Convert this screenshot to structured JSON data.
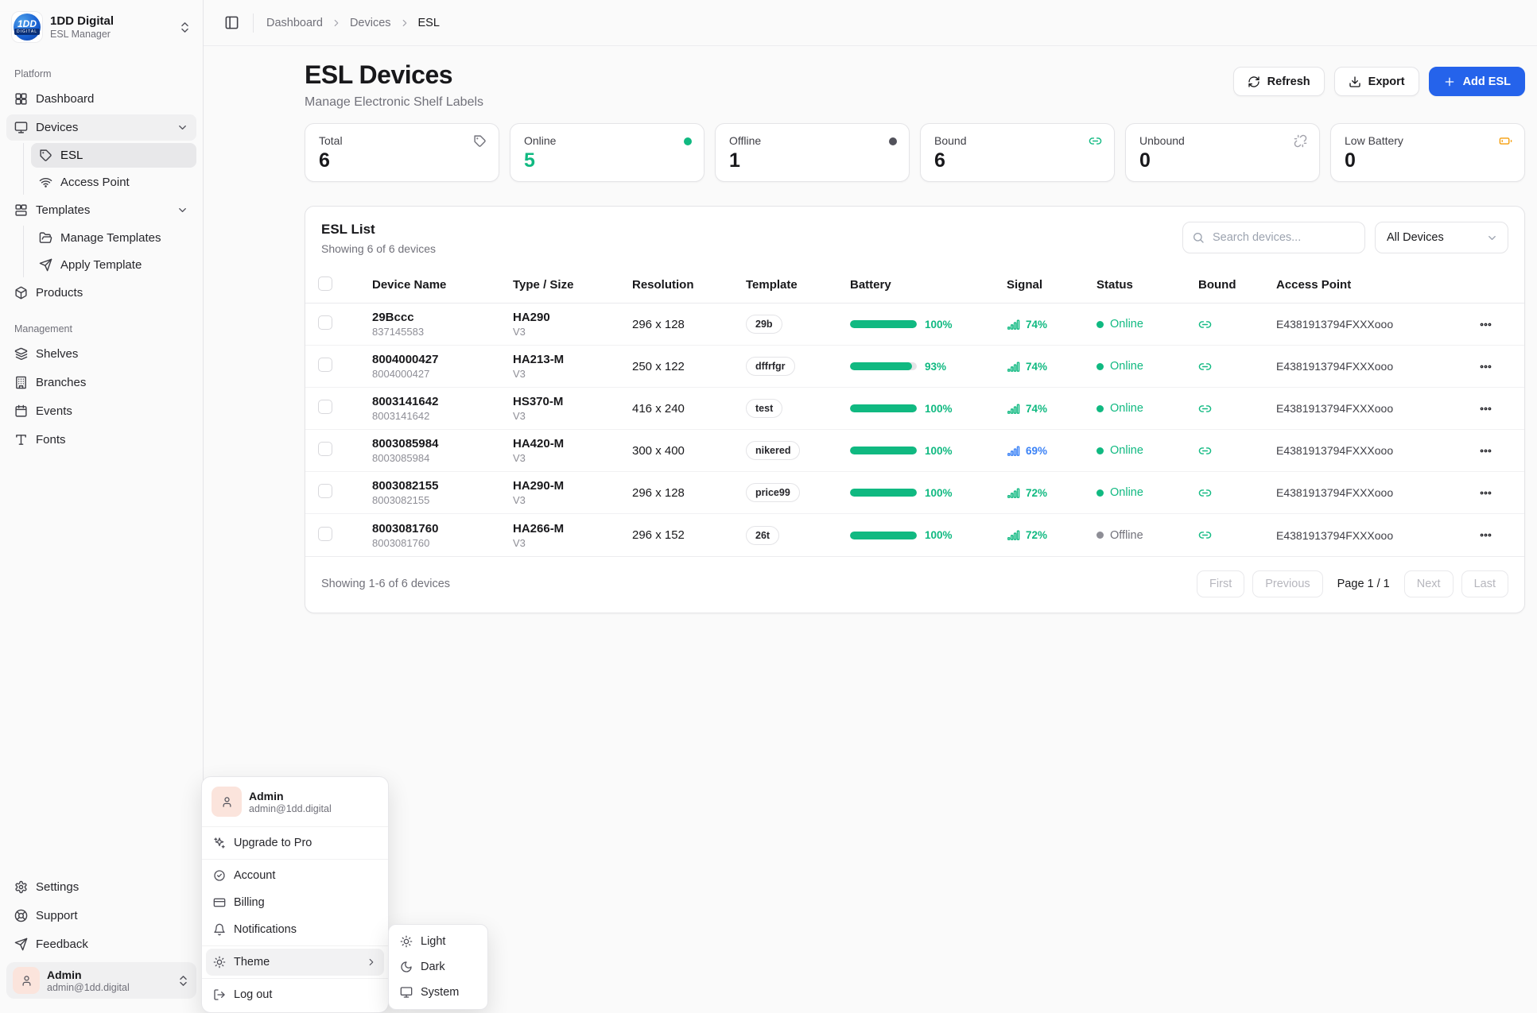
{
  "brand": {
    "logo_line1": "1DD",
    "logo_line2": "DIGITAL",
    "name": "1DD Digital",
    "subtitle": "ESL Manager"
  },
  "breadcrumb": {
    "items": [
      "Dashboard",
      "Devices",
      "ESL"
    ]
  },
  "sidebar": {
    "platform_label": "Platform",
    "dashboard": "Dashboard",
    "devices": "Devices",
    "esl": "ESL",
    "access_point": "Access Point",
    "templates": "Templates",
    "manage_templates": "Manage Templates",
    "apply_template": "Apply Template",
    "products": "Products",
    "management_label": "Management",
    "shelves": "Shelves",
    "branches": "Branches",
    "events": "Events",
    "fonts": "Fonts",
    "settings": "Settings",
    "support": "Support",
    "feedback": "Feedback",
    "user": {
      "name": "Admin",
      "email": "admin@1dd.digital"
    }
  },
  "page": {
    "title": "ESL Devices",
    "subtitle": "Manage Electronic Shelf Labels"
  },
  "toolbar": {
    "refresh_label": "Refresh",
    "export_label": "Export",
    "add_label": "Add ESL"
  },
  "stats": [
    {
      "label": "Total",
      "value": "6",
      "icon": "tag-icon"
    },
    {
      "label": "Online",
      "value": "5",
      "icon": "green-dot",
      "value_color": "#10b981"
    },
    {
      "label": "Offline",
      "value": "1",
      "icon": "gray-dot"
    },
    {
      "label": "Bound",
      "value": "6",
      "icon": "link-icon"
    },
    {
      "label": "Unbound",
      "value": "0",
      "icon": "unlink-icon"
    },
    {
      "label": "Low Battery",
      "value": "0",
      "icon": "battery-icon"
    }
  ],
  "list": {
    "title": "ESL List",
    "subtitle": "Showing 6 of 6 devices",
    "search_placeholder": "Search devices...",
    "filter_value": "All Devices",
    "columns": [
      "Device Name",
      "Type / Size",
      "Resolution",
      "Template",
      "Battery",
      "Signal",
      "Status",
      "Bound",
      "Access Point"
    ],
    "rows": [
      {
        "name": "29Bccc",
        "id": "837145583",
        "type": "HA290",
        "ver": "V3",
        "resolution": "296 x 128",
        "template": "29b",
        "battery": "100%",
        "battery_pct": 100,
        "signal": "74%",
        "signal_color": "#10b981",
        "status": "Online",
        "access_point": "E4381913794FXXXooo"
      },
      {
        "name": "8004000427",
        "id": "8004000427",
        "type": "HA213-M",
        "ver": "V3",
        "resolution": "250 x 122",
        "template": "dffrfgr",
        "battery": "93%",
        "battery_pct": 93,
        "signal": "74%",
        "signal_color": "#10b981",
        "status": "Online",
        "access_point": "E4381913794FXXXooo"
      },
      {
        "name": "8003141642",
        "id": "8003141642",
        "type": "HS370-M",
        "ver": "V3",
        "resolution": "416 x 240",
        "template": "test",
        "battery": "100%",
        "battery_pct": 100,
        "signal": "74%",
        "signal_color": "#10b981",
        "status": "Online",
        "access_point": "E4381913794FXXXooo"
      },
      {
        "name": "8003085984",
        "id": "8003085984",
        "type": "HA420-M",
        "ver": "V3",
        "resolution": "300 x 400",
        "template": "nikered",
        "battery": "100%",
        "battery_pct": 100,
        "signal": "69%",
        "signal_color": "#3b82f6",
        "status": "Online",
        "access_point": "E4381913794FXXXooo"
      },
      {
        "name": "8003082155",
        "id": "8003082155",
        "type": "HA290-M",
        "ver": "V3",
        "resolution": "296 x 128",
        "template": "price99",
        "battery": "100%",
        "battery_pct": 100,
        "signal": "72%",
        "signal_color": "#10b981",
        "status": "Online",
        "access_point": "E4381913794FXXXooo"
      },
      {
        "name": "8003081760",
        "id": "8003081760",
        "type": "HA266-M",
        "ver": "V3",
        "resolution": "296 x 152",
        "template": "26t",
        "battery": "100%",
        "battery_pct": 100,
        "signal": "72%",
        "signal_color": "#10b981",
        "status": "Offline",
        "access_point": "E4381913794FXXXooo"
      }
    ],
    "footer": {
      "showing": "Showing 1-6 of 6 devices",
      "first": "First",
      "previous": "Previous",
      "page_info": "Page 1 / 1",
      "next": "Next",
      "last": "Last"
    }
  },
  "user_menu": {
    "name": "Admin",
    "email": "admin@1dd.digital",
    "upgrade": "Upgrade to Pro",
    "account": "Account",
    "billing": "Billing",
    "notifications": "Notifications",
    "theme": "Theme",
    "logout": "Log out",
    "theme_options": [
      "Light",
      "Dark",
      "System"
    ]
  },
  "colors": {
    "accent_green": "#10b981",
    "accent_blue": "#2563eb",
    "signal_blue": "#3b82f6",
    "warning": "#f59e0b"
  }
}
